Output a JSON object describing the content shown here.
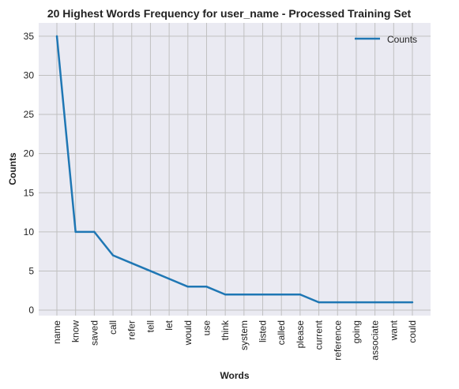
{
  "chart_data": {
    "type": "line",
    "title": "20 Highest Words Frequency for user_name - Processed Training Set",
    "xlabel": "Words",
    "ylabel": "Counts",
    "categories": [
      "name",
      "know",
      "saved",
      "call",
      "refer",
      "tell",
      "let",
      "would",
      "use",
      "think",
      "system",
      "listed",
      "called",
      "please",
      "current",
      "reference",
      "going",
      "associate",
      "want",
      "could"
    ],
    "series": [
      {
        "name": "Counts",
        "values": [
          35,
          10,
          10,
          7,
          6,
          5,
          4,
          3,
          3,
          2,
          2,
          2,
          2,
          2,
          1,
          1,
          1,
          1,
          1,
          1
        ]
      }
    ],
    "ylim": [
      -0.7,
      36.7
    ],
    "yticks": [
      0,
      5,
      10,
      15,
      20,
      25,
      30,
      35
    ],
    "grid": true,
    "legend_position": "top-right",
    "colors": {
      "line": "#1f77b4",
      "plot_background": "#eaeaf2",
      "grid": "#c0c0c0"
    }
  }
}
